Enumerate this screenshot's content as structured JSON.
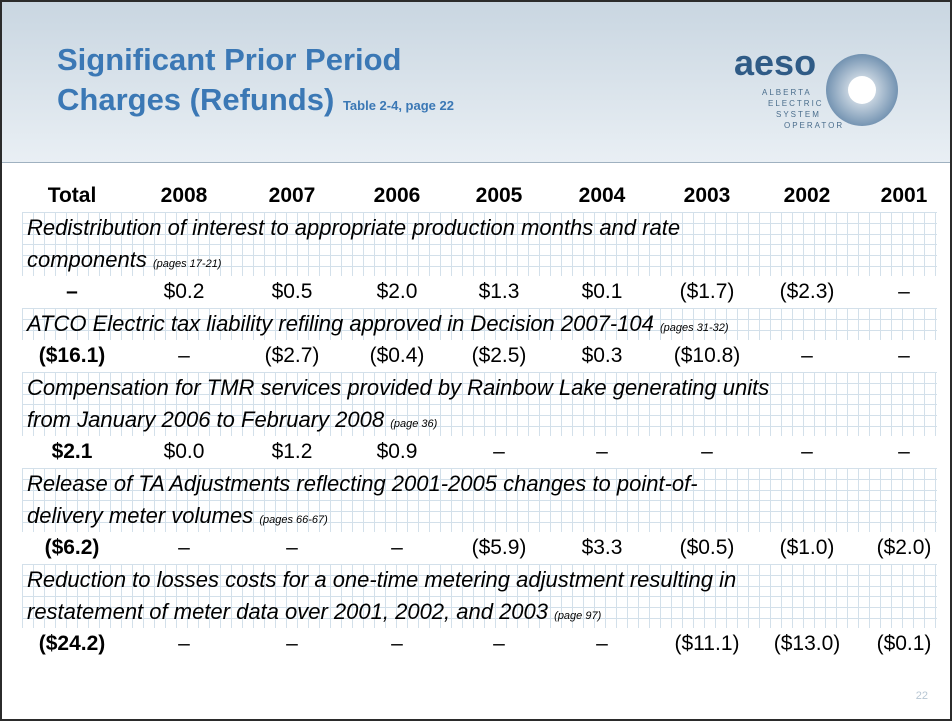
{
  "header": {
    "title_lines": [
      "Significant Prior Period",
      "Charges (Refunds)"
    ],
    "subtitle": "Table 2-4, page 22"
  },
  "logo": {
    "name": "aeso",
    "lines": [
      "ALBERTA",
      "ELECTRIC",
      "SYSTEM",
      "OPERATOR"
    ]
  },
  "table": {
    "columns": [
      "Total",
      "2008",
      "2007",
      "2006",
      "2005",
      "2004",
      "2003",
      "2002",
      "2001"
    ],
    "sections": [
      {
        "lines": [
          "Redistribution of interest to appropriate production months and rate",
          "components"
        ],
        "reference": "(pages 17-21)",
        "values": [
          "–",
          "$0.2",
          "$0.5",
          "$2.0",
          "$1.3",
          "$0.1",
          "($1.7)",
          "($2.3)",
          "–"
        ]
      },
      {
        "lines": [
          "ATCO Electric tax liability refiling approved in Decision 2007-104"
        ],
        "reference": "(pages 31-32)",
        "values": [
          "($16.1)",
          "–",
          "($2.7)",
          "($0.4)",
          "($2.5)",
          "$0.3",
          "($10.8)",
          "–",
          "–"
        ]
      },
      {
        "lines": [
          "Compensation for TMR services provided by Rainbow Lake generating units",
          "from January 2006 to February 2008"
        ],
        "reference": "(page 36)",
        "values": [
          "$2.1",
          "$0.0",
          "$1.2",
          "$0.9",
          "–",
          "–",
          "–",
          "–",
          "–"
        ]
      },
      {
        "lines": [
          "Release of TA Adjustments reflecting 2001-2005 changes to point-of-",
          "delivery meter volumes"
        ],
        "reference": "(pages 66-67)",
        "values": [
          "($6.2)",
          "–",
          "–",
          "–",
          "($5.9)",
          "$3.3",
          "($0.5)",
          "($1.0)",
          "($2.0)"
        ]
      },
      {
        "lines": [
          "Reduction to losses costs for a one-time metering adjustment resulting in",
          "restatement of meter data over 2001, 2002, and 2003"
        ],
        "reference": "(page 97)",
        "values": [
          "($24.2)",
          "–",
          "–",
          "–",
          "–",
          "–",
          "($11.1)",
          "($13.0)",
          "($0.1)"
        ]
      }
    ]
  },
  "page_number": "22"
}
